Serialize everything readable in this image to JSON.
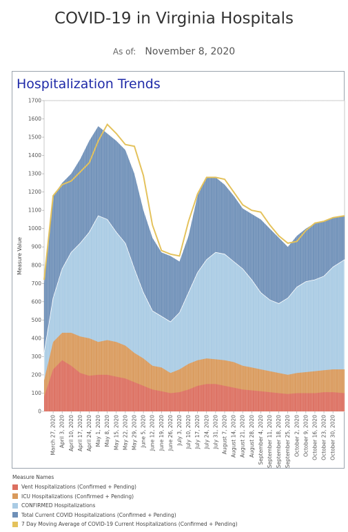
{
  "header": {
    "title": "COVID-19 in Virginia Hospitals",
    "as_of_label": "As of:",
    "as_of_date": "November 8, 2020"
  },
  "chart_data": {
    "type": "area",
    "title": "Hospitalization Trends",
    "ylabel": "Measure Value",
    "xlabel": "",
    "ylim": [
      0,
      1700
    ],
    "yticks": [
      0,
      100,
      200,
      300,
      400,
      500,
      600,
      700,
      800,
      900,
      1000,
      1100,
      1200,
      1300,
      1400,
      1500,
      1600,
      1700
    ],
    "xlim": [
      "2020-03-20",
      "2020-11-08"
    ],
    "xtick_labels": [
      "March 27, 2020",
      "April 3, 2020",
      "April 10, 2020",
      "April 17, 2020",
      "April 24, 2020",
      "May 1, 2020",
      "May 8, 2020",
      "May 15, 2020",
      "May 22, 2020",
      "May 29, 2020",
      "June 5, 2020",
      "June 12, 2020",
      "June 19, 2020",
      "June 26, 2020",
      "July 3, 2020",
      "July 10, 2020",
      "July 17, 2020",
      "July 24, 2020",
      "July 31, 2020",
      "August 7, 2020",
      "August 14, 2020",
      "August 21, 2020",
      "August 28, 2020",
      "September 4, 2020",
      "September 11, 2020",
      "September 18, 2020",
      "September 25, 2020",
      "October 2, 2020",
      "October 9, 2020",
      "October 16, 2020",
      "October 23, 2020",
      "October 30, 2020"
    ],
    "grid": false,
    "legend_position": "bottom-left",
    "legend_title": "Measure Names",
    "x": [
      "2020-03-20",
      "2020-03-27",
      "2020-04-03",
      "2020-04-10",
      "2020-04-17",
      "2020-04-24",
      "2020-05-01",
      "2020-05-08",
      "2020-05-15",
      "2020-05-22",
      "2020-05-29",
      "2020-06-05",
      "2020-06-12",
      "2020-06-19",
      "2020-06-26",
      "2020-07-03",
      "2020-07-10",
      "2020-07-17",
      "2020-07-24",
      "2020-07-31",
      "2020-08-07",
      "2020-08-14",
      "2020-08-21",
      "2020-08-28",
      "2020-09-04",
      "2020-09-11",
      "2020-09-18",
      "2020-09-25",
      "2020-10-02",
      "2020-10-09",
      "2020-10-16",
      "2020-10-23",
      "2020-10-30",
      "2020-11-08"
    ],
    "series": [
      {
        "name": "Total Current COVID Hospitalizations (Confirmed + Pending)",
        "color": "#6f90b8",
        "values": [
          700,
          1180,
          1250,
          1300,
          1380,
          1480,
          1560,
          1520,
          1480,
          1430,
          1300,
          1100,
          950,
          870,
          850,
          820,
          960,
          1180,
          1280,
          1280,
          1240,
          1180,
          1110,
          1080,
          1050,
          1000,
          950,
          900,
          960,
          1000,
          1030,
          1040,
          1060,
          1070
        ]
      },
      {
        "name": "CONFIRMED Hospitalizations",
        "color": "#a9cbe4",
        "values": [
          320,
          620,
          780,
          870,
          920,
          980,
          1070,
          1050,
          980,
          920,
          780,
          650,
          550,
          520,
          490,
          540,
          650,
          760,
          830,
          870,
          860,
          820,
          780,
          720,
          650,
          610,
          590,
          620,
          680,
          710,
          720,
          740,
          790,
          830
        ]
      },
      {
        "name": "ICU Hospitalizations (Confirmed + Pending)",
        "color": "#d99a5c",
        "values": [
          170,
          380,
          430,
          430,
          410,
          400,
          380,
          390,
          380,
          360,
          320,
          290,
          250,
          240,
          210,
          230,
          260,
          280,
          290,
          285,
          280,
          270,
          250,
          240,
          230,
          220,
          210,
          200,
          210,
          215,
          220,
          225,
          230,
          230
        ]
      },
      {
        "name": "Vent Hospitalizations (Confirmed + Pending)",
        "color": "#dc6f60",
        "values": [
          80,
          230,
          280,
          250,
          210,
          195,
          200,
          200,
          190,
          180,
          160,
          140,
          120,
          110,
          100,
          105,
          120,
          140,
          150,
          150,
          140,
          130,
          120,
          115,
          110,
          105,
          100,
          95,
          100,
          100,
          100,
          105,
          105,
          100
        ]
      },
      {
        "name": "7 Day Moving Average of COVID-19 Current Hospitalizations (Confirmed + Pending)",
        "color": "#e4c25c",
        "values": [
          720,
          1180,
          1240,
          1260,
          1310,
          1360,
          1480,
          1570,
          1520,
          1460,
          1450,
          1290,
          1020,
          880,
          860,
          850,
          1040,
          1190,
          1280,
          1280,
          1270,
          1200,
          1130,
          1100,
          1090,
          1020,
          960,
          920,
          930,
          990,
          1030,
          1040,
          1060,
          1070
        ]
      }
    ]
  }
}
